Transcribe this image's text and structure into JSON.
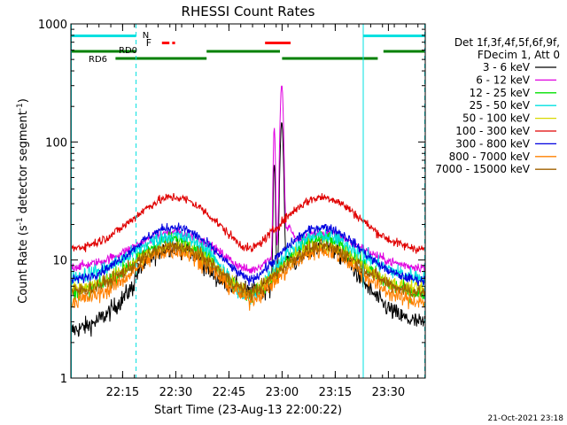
{
  "chart_data": {
    "type": "line",
    "title": "RHESSI Count Rates",
    "xlabel": "Start Time (23-Aug-13 22:00:22)",
    "ylabel_main": "Count Rate (s",
    "ylabel_sup1": "-1",
    "ylabel_mid": " detector segment",
    "ylabel_sup2": "-1",
    "ylabel_end": ")",
    "yscale": "log",
    "ylim": [
      1,
      1000
    ],
    "xlim": [
      0,
      100
    ],
    "xticks": [
      {
        "label": "22:15",
        "x": 14.6
      },
      {
        "label": "22:30",
        "x": 29.6
      },
      {
        "label": "22:45",
        "x": 44.6
      },
      {
        "label": "23:00",
        "x": 59.6
      },
      {
        "label": "23:15",
        "x": 74.6
      },
      {
        "label": "23:30",
        "x": 89.6
      }
    ],
    "yticks": [
      {
        "label": "1",
        "y": 1
      },
      {
        "label": "10",
        "y": 10
      },
      {
        "label": "100",
        "y": 100
      },
      {
        "label": "1000",
        "y": 1000
      }
    ],
    "legend_header": [
      "Det 1f,3f,4f,5f,6f,9f,",
      "FDecim 1, Att 0"
    ],
    "series": [
      {
        "name": "3 - 6 keV",
        "color": "#000000",
        "edge": 2.8,
        "peak": 13,
        "dip": 4.5,
        "flare": 140,
        "noise": 0.08
      },
      {
        "name": "6 - 12 keV",
        "color": "#e000e0",
        "edge": 8.5,
        "peak": 17,
        "dip": 7.0,
        "flare": 290,
        "noise": 0.04
      },
      {
        "name": "12 - 25 keV",
        "color": "#00e000",
        "edge": 5.0,
        "peak": 15,
        "dip": 4.0,
        "flare": 0,
        "noise": 0.07
      },
      {
        "name": "25 - 50 keV",
        "color": "#00e0e0",
        "edge": 7.0,
        "peak": 16,
        "dip": 3.6,
        "flare": 0,
        "noise": 0.07
      },
      {
        "name": "50 - 100 keV",
        "color": "#d8d800",
        "edge": 5.5,
        "peak": 13,
        "dip": 4.2,
        "flare": 0,
        "noise": 0.06
      },
      {
        "name": "100 - 300 keV",
        "color": "#e00000",
        "edge": 12,
        "peak": 34,
        "dip": 10,
        "flare": 0,
        "noise": 0.04
      },
      {
        "name": "300 - 800 keV",
        "color": "#0000e0",
        "edge": 6.5,
        "peak": 19,
        "dip": 5.5,
        "flare": 0,
        "noise": 0.04
      },
      {
        "name": "800 - 7000 keV",
        "color": "#ff8000",
        "edge": 4.3,
        "peak": 12,
        "dip": 3.8,
        "flare": 0,
        "noise": 0.07
      },
      {
        "name": "7000 - 15000 keV",
        "color": "#a06000",
        "edge": 5.2,
        "peak": 13,
        "dip": 4.4,
        "flare": 0,
        "noise": 0.06
      }
    ],
    "flag_labels": {
      "N": "N",
      "F": "F",
      "RD0": "RD0",
      "RD6": "RD6"
    },
    "night_color": "#00e0e0",
    "flare_color": "#ff0000",
    "rd_color": "#008000",
    "night_intervals": [
      [
        0,
        18.4
      ],
      [
        82.5,
        100
      ]
    ],
    "night_boundaries": [
      18.4,
      82.5
    ],
    "flare_intervals": [
      [
        25.7,
        27.8
      ],
      [
        28.6,
        29.4
      ],
      [
        54.8,
        62.0
      ]
    ],
    "rd0_intervals": [
      [
        0,
        18.4
      ],
      [
        38.3,
        59.0
      ],
      [
        88.2,
        100
      ]
    ],
    "rd6_intervals": [
      [
        12.6,
        38.3
      ],
      [
        59.6,
        86.6
      ]
    ]
  },
  "timestamp": "21-Oct-2021 23:18"
}
